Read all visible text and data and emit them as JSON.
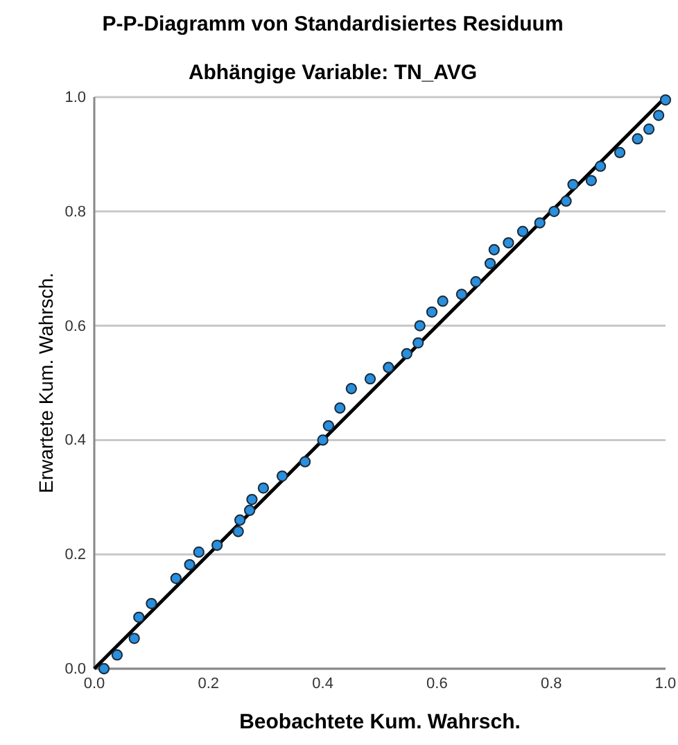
{
  "chart_data": {
    "type": "scatter",
    "title": "P-P-Diagramm von Standardisiertes Residuum",
    "subtitle": "Abhängige Variable: TN_AVG",
    "xlabel": "Beobachtete Kum. Wahrsch.",
    "ylabel": "Erwartete Kum. Wahrsch.",
    "xlim": [
      0,
      1
    ],
    "ylim": [
      0,
      1
    ],
    "xticks": [
      {
        "value": 0,
        "label": "0.0"
      },
      {
        "value": 0.2,
        "label": "0.2"
      },
      {
        "value": 0.4,
        "label": "0.4"
      },
      {
        "value": 0.6,
        "label": "0.6"
      },
      {
        "value": 0.8,
        "label": "0.8"
      },
      {
        "value": 1,
        "label": "1.0"
      }
    ],
    "yticks": [
      {
        "value": 0,
        "label": "0.0"
      },
      {
        "value": 0.2,
        "label": "0.2"
      },
      {
        "value": 0.4,
        "label": "0.4"
      },
      {
        "value": 0.6,
        "label": "0.6"
      },
      {
        "value": 0.8,
        "label": "0.8"
      },
      {
        "value": 1,
        "label": "1.0"
      }
    ],
    "grid": "y",
    "series": [
      {
        "type": "line",
        "color": "#000000",
        "x": [
          0,
          1
        ],
        "values": [
          0,
          1
        ]
      },
      {
        "marker": "circle",
        "color": "#2a8fdc",
        "x": [
          0.017,
          0.04,
          0.07,
          0.078,
          0.1,
          0.143,
          0.167,
          0.183,
          0.215,
          0.252,
          0.255,
          0.272,
          0.276,
          0.296,
          0.329,
          0.369,
          0.4,
          0.41,
          0.43,
          0.45,
          0.483,
          0.515,
          0.547,
          0.567,
          0.57,
          0.591,
          0.61,
          0.643,
          0.668,
          0.693,
          0.7,
          0.725,
          0.75,
          0.78,
          0.805,
          0.826,
          0.838,
          0.87,
          0.886,
          0.92,
          0.951,
          0.971,
          0.988,
          1.0
        ],
        "values": [
          0.0,
          0.024,
          0.053,
          0.09,
          0.114,
          0.158,
          0.182,
          0.204,
          0.216,
          0.24,
          0.26,
          0.277,
          0.296,
          0.316,
          0.337,
          0.362,
          0.4,
          0.425,
          0.456,
          0.49,
          0.507,
          0.527,
          0.551,
          0.57,
          0.6,
          0.624,
          0.643,
          0.655,
          0.677,
          0.709,
          0.733,
          0.745,
          0.765,
          0.78,
          0.8,
          0.818,
          0.847,
          0.854,
          0.879,
          0.903,
          0.927,
          0.944,
          0.968,
          0.995
        ]
      }
    ]
  }
}
